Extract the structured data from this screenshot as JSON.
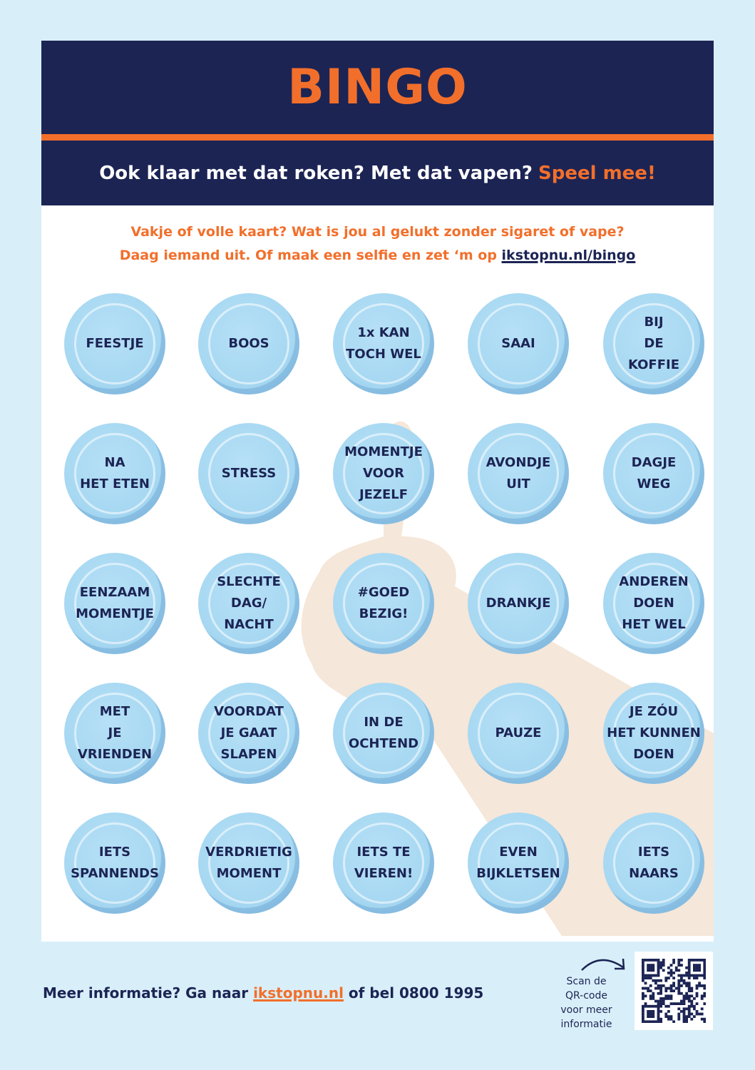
{
  "header": {
    "title": "BINGO",
    "subtitle": "Ook klaar met dat roken? Met dat vapen?",
    "subtitle_accent": "Speel mee!"
  },
  "intro": {
    "line1": "Vakje of volle kaart? Wat is jou al gelukt zonder sigaret of vape?",
    "line2": "Daag iemand uit. Of maak een selfie en zet ‘m op",
    "link": "ikstopnu.nl/bingo"
  },
  "grid": [
    [
      [
        "FEESTJE"
      ],
      [
        "BOOS"
      ],
      [
        "1x KAN",
        "TOCH WEL"
      ],
      [
        "SAAI"
      ],
      [
        "BIJ",
        "DE",
        "KOFFIE"
      ]
    ],
    [
      [
        "NA",
        "HET ETEN"
      ],
      [
        "STRESS"
      ],
      [
        "MOMENTJE",
        "VOOR",
        "JEZELF"
      ],
      [
        "AVONDJE",
        "UIT"
      ],
      [
        "DAGJE",
        "WEG"
      ]
    ],
    [
      [
        "EENZAAM",
        "MOMENTJE"
      ],
      [
        "SLECHTE",
        "DAG/",
        "NACHT"
      ],
      [
        "#GOED",
        "BEZIG!"
      ],
      [
        "DRANKJE"
      ],
      [
        "ANDEREN",
        "DOEN",
        "HET WEL"
      ]
    ],
    [
      [
        "MET",
        "JE",
        "VRIENDEN"
      ],
      [
        "VOORDAT",
        "JE GAAT",
        "SLAPEN"
      ],
      [
        "IN DE",
        "OCHTEND"
      ],
      [
        "PAUZE"
      ],
      [
        "JE ZÓU",
        "HET KUNNEN",
        "DOEN"
      ]
    ],
    [
      [
        "IETS",
        "SPANNENDS"
      ],
      [
        "VERDRIETIG",
        "MOMENT"
      ],
      [
        "IETS TE",
        "VIEREN!"
      ],
      [
        "EVEN",
        "BIJKLETSEN"
      ],
      [
        "IETS",
        "NAARS"
      ]
    ]
  ],
  "footer": {
    "text_before": "Meer informatie? Ga naar",
    "link": "ikstopnu.nl",
    "text_after": "of bel 0800 1995",
    "scan": [
      "Scan de",
      "QR-code",
      "voor meer",
      "informatie"
    ]
  },
  "colors": {
    "navy": "#1c2454",
    "orange": "#f26f2b",
    "cell": "#a7d8f2",
    "background": "#d8eff9"
  }
}
